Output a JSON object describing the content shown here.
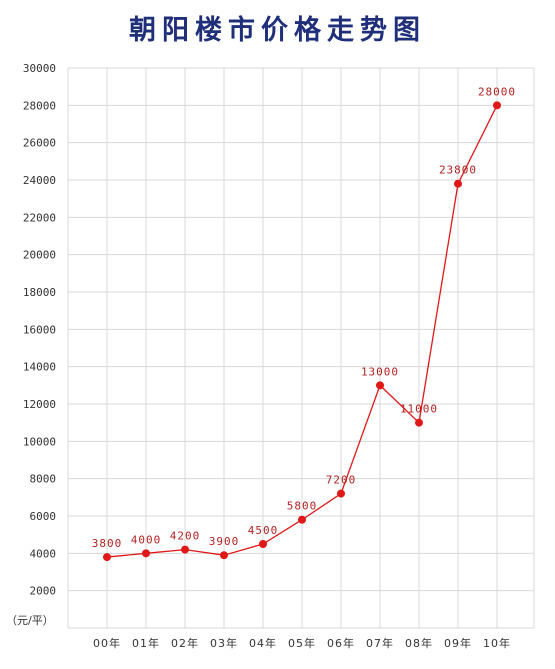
{
  "chart_data": {
    "type": "line",
    "title": "朝阳楼市价格走势图",
    "unit_label": "（元/平）",
    "categories": [
      "00年",
      "01年",
      "02年",
      "03年",
      "04年",
      "05年",
      "06年",
      "07年",
      "08年",
      "09年",
      "10年"
    ],
    "y_tick_labels": [
      "2000",
      "4000",
      "6000",
      "8000",
      "10000",
      "12000",
      "14000",
      "16000",
      "18000",
      "20000",
      "22000",
      "24000",
      "26000",
      "28000",
      "30000"
    ],
    "ylim": [
      0,
      30000
    ],
    "grid": true,
    "series": [
      {
        "values": [
          3800,
          4000,
          4200,
          3900,
          4500,
          5800,
          7200,
          13000,
          11000,
          23800,
          28000
        ],
        "data_labels": [
          "3800",
          "4000",
          "4200",
          "3900",
          "4500",
          "5800",
          "7200",
          "13000",
          "11000",
          "23800",
          "28000"
        ],
        "color": "#e01818"
      }
    ]
  }
}
